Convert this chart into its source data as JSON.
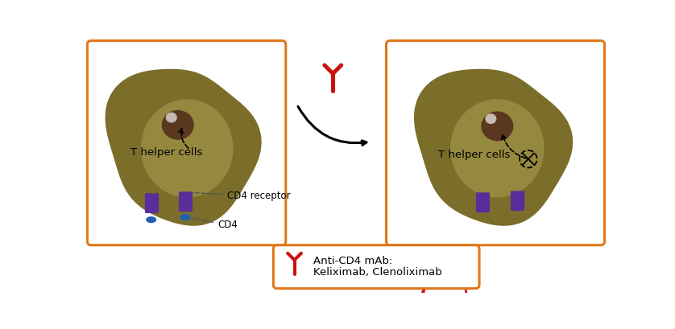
{
  "bg_color": "#ffffff",
  "cell_outer": "#7a6e2a",
  "cell_highlight": "#b8aa5a",
  "cell_edge": "none",
  "nucleus_color": "#5a3820",
  "nucleus_highlight": "#c8a870",
  "receptor_color": "#5a2d9a",
  "cd4_color": "#2060b0",
  "antibody_color": "#cc1111",
  "box_border": "#e07818",
  "text_color": "#222222",
  "panel1_label": "T helper cells",
  "panel2_label": "T helper cells",
  "cd4_receptor_label": "CD4 receptor",
  "cd4_label": "CD4",
  "legend_ab_label": "Anti-CD4 mAb:",
  "legend_drugs": "Keliximab, Clenoliximab",
  "figw": 8.38,
  "figh": 4.09,
  "dpi": 100
}
